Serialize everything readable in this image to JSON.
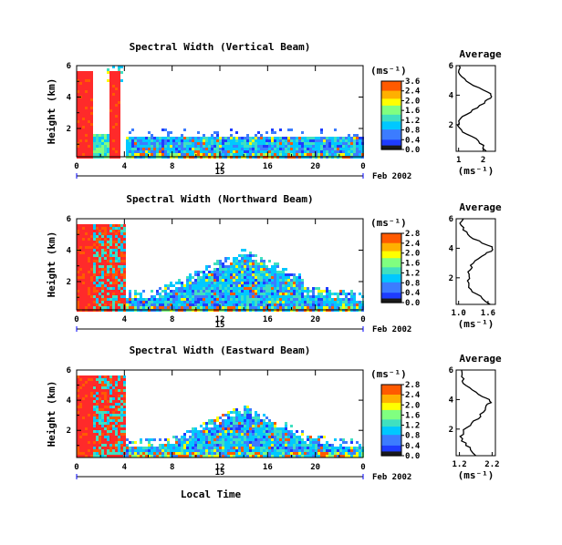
{
  "chart_data": [
    {
      "type": "heatmap",
      "title": "Spectral Width (Vertical Beam)",
      "ylabel": "Height (km)",
      "ylim": [
        0.2,
        6
      ],
      "yticks": [
        "2",
        "4",
        "6"
      ],
      "x_ticks": [
        "0",
        "4",
        "8",
        "12",
        "16",
        "20",
        "0"
      ],
      "date_ticks": [
        "15"
      ],
      "date_label": "Feb 2002",
      "colorbar": {
        "unit": "(ms⁻¹)",
        "labels": [
          "3.6",
          "2.4",
          "2.0",
          "1.6",
          "1.2",
          "0.8",
          "0.4",
          "0.0"
        ]
      },
      "regions": [
        {
          "hours": [
            0,
            3.6
          ],
          "top_km": 6.0,
          "value": "high / saturated red columns, partly gappy above 4 km"
        },
        {
          "hours": [
            3.6,
            24
          ],
          "top_km": 2.0,
          "value": "mostly 0.2-0.8 with scattered higher values near 0.2-1.0 km"
        }
      ]
    },
    {
      "type": "line",
      "title": "Average",
      "xlabel": "(ms⁻¹)",
      "x_ticks": [
        "1",
        "2"
      ],
      "xlim": [
        0.9,
        2.5
      ],
      "y_ticks": [
        "2",
        "4",
        "6"
      ],
      "ylim": [
        0.2,
        6
      ],
      "series": [
        {
          "x": [
            2.1,
            2.0,
            1.8,
            1.5,
            1.2,
            1.05,
            1.0,
            1.1,
            1.3,
            1.6,
            1.9,
            2.1,
            2.25,
            2.35,
            2.2,
            1.8,
            1.5,
            1.2,
            1.1,
            1.0,
            1.05
          ],
          "y": [
            0.2,
            0.6,
            0.9,
            1.2,
            1.5,
            1.8,
            2.1,
            2.4,
            2.7,
            3.0,
            3.3,
            3.6,
            3.8,
            4.0,
            4.2,
            4.5,
            4.8,
            5.1,
            5.4,
            5.7,
            6.0
          ]
        }
      ]
    },
    {
      "type": "heatmap",
      "title": "Spectral Width (Northward Beam)",
      "ylabel": "Height (km)",
      "ylim": [
        0.2,
        6
      ],
      "yticks": [
        "2",
        "4",
        "6"
      ],
      "x_ticks": [
        "0",
        "4",
        "8",
        "12",
        "16",
        "20",
        "0"
      ],
      "date_ticks": [
        "15"
      ],
      "date_label": "Feb 2002",
      "colorbar": {
        "unit": "(ms⁻¹)",
        "labels": [
          "2.8",
          "2.4",
          "2.0",
          "1.6",
          "1.2",
          "0.8",
          "0.4",
          "0.0"
        ]
      },
      "regions": [
        {
          "hours": [
            0,
            4
          ],
          "top_km": 6.0,
          "value": "high (red/orange) with cyan patches"
        },
        {
          "hours": [
            4,
            24
          ],
          "top_km": 3.3,
          "value": "mostly 0.4-1.2, echo top rising to ~3.3 km near 14 LT"
        }
      ]
    },
    {
      "type": "line",
      "title": "Average",
      "xlabel": "(ms⁻¹)",
      "x_ticks": [
        "1.0",
        "1.6"
      ],
      "xlim": [
        0.95,
        1.75
      ],
      "y_ticks": [
        "2",
        "4",
        "6"
      ],
      "ylim": [
        0.2,
        6
      ],
      "series": [
        {
          "x": [
            1.62,
            1.5,
            1.35,
            1.25,
            1.2,
            1.18,
            1.22,
            1.2,
            1.25,
            1.3,
            1.4,
            1.55,
            1.65,
            1.7,
            1.6,
            1.4,
            1.25,
            1.15,
            1.1,
            1.05,
            1.1
          ],
          "y": [
            0.2,
            0.6,
            0.9,
            1.2,
            1.5,
            1.8,
            2.1,
            2.4,
            2.7,
            3.0,
            3.3,
            3.6,
            3.8,
            4.0,
            4.2,
            4.5,
            4.8,
            5.1,
            5.4,
            5.7,
            6.0
          ]
        }
      ]
    },
    {
      "type": "heatmap",
      "title": "Spectral Width (Eastward Beam)",
      "ylabel": "Height (km)",
      "xlabel": "Local Time",
      "ylim": [
        0.2,
        6
      ],
      "yticks": [
        "2",
        "4",
        "6"
      ],
      "x_ticks": [
        "0",
        "4",
        "8",
        "12",
        "16",
        "20",
        "0"
      ],
      "date_ticks": [
        "15"
      ],
      "date_label": "Feb 2002",
      "colorbar": {
        "unit": "(ms⁻¹)",
        "labels": [
          "2.8",
          "2.4",
          "2.0",
          "1.6",
          "1.2",
          "0.8",
          "0.4",
          "0.0"
        ]
      },
      "regions": [
        {
          "hours": [
            0,
            4
          ],
          "top_km": 6.0,
          "value": "high (red/orange) with cyan patches"
        },
        {
          "hours": [
            4,
            24
          ],
          "top_km": 2.8,
          "value": "mostly 0.4-1.2, echo top ~2.8 km near 14 LT"
        }
      ]
    },
    {
      "type": "line",
      "title": "Average",
      "xlabel": "(ms⁻¹)",
      "x_ticks": [
        "1.2",
        "2.2"
      ],
      "xlim": [
        1.1,
        2.3
      ],
      "y_ticks": [
        "2",
        "4",
        "6"
      ],
      "ylim": [
        0.2,
        6
      ],
      "series": [
        {
          "x": [
            1.7,
            1.55,
            1.4,
            1.3,
            1.25,
            1.3,
            1.45,
            1.6,
            1.75,
            1.85,
            1.95,
            2.05,
            2.15,
            2.1,
            1.9,
            1.7,
            1.5,
            1.35,
            1.3,
            1.25,
            1.3
          ],
          "y": [
            0.2,
            0.6,
            0.9,
            1.2,
            1.5,
            1.8,
            2.1,
            2.4,
            2.7,
            3.0,
            3.3,
            3.6,
            3.8,
            4.0,
            4.2,
            4.5,
            4.8,
            5.1,
            5.4,
            5.7,
            6.0
          ]
        }
      ]
    }
  ],
  "colors": {
    "scale": [
      "#1a1a1a",
      "#1e3cff",
      "#3c7cff",
      "#00c8ff",
      "#40e0c0",
      "#80ff80",
      "#ffff00",
      "#ffb000",
      "#ff5a00",
      "#ff2a2a"
    ]
  }
}
